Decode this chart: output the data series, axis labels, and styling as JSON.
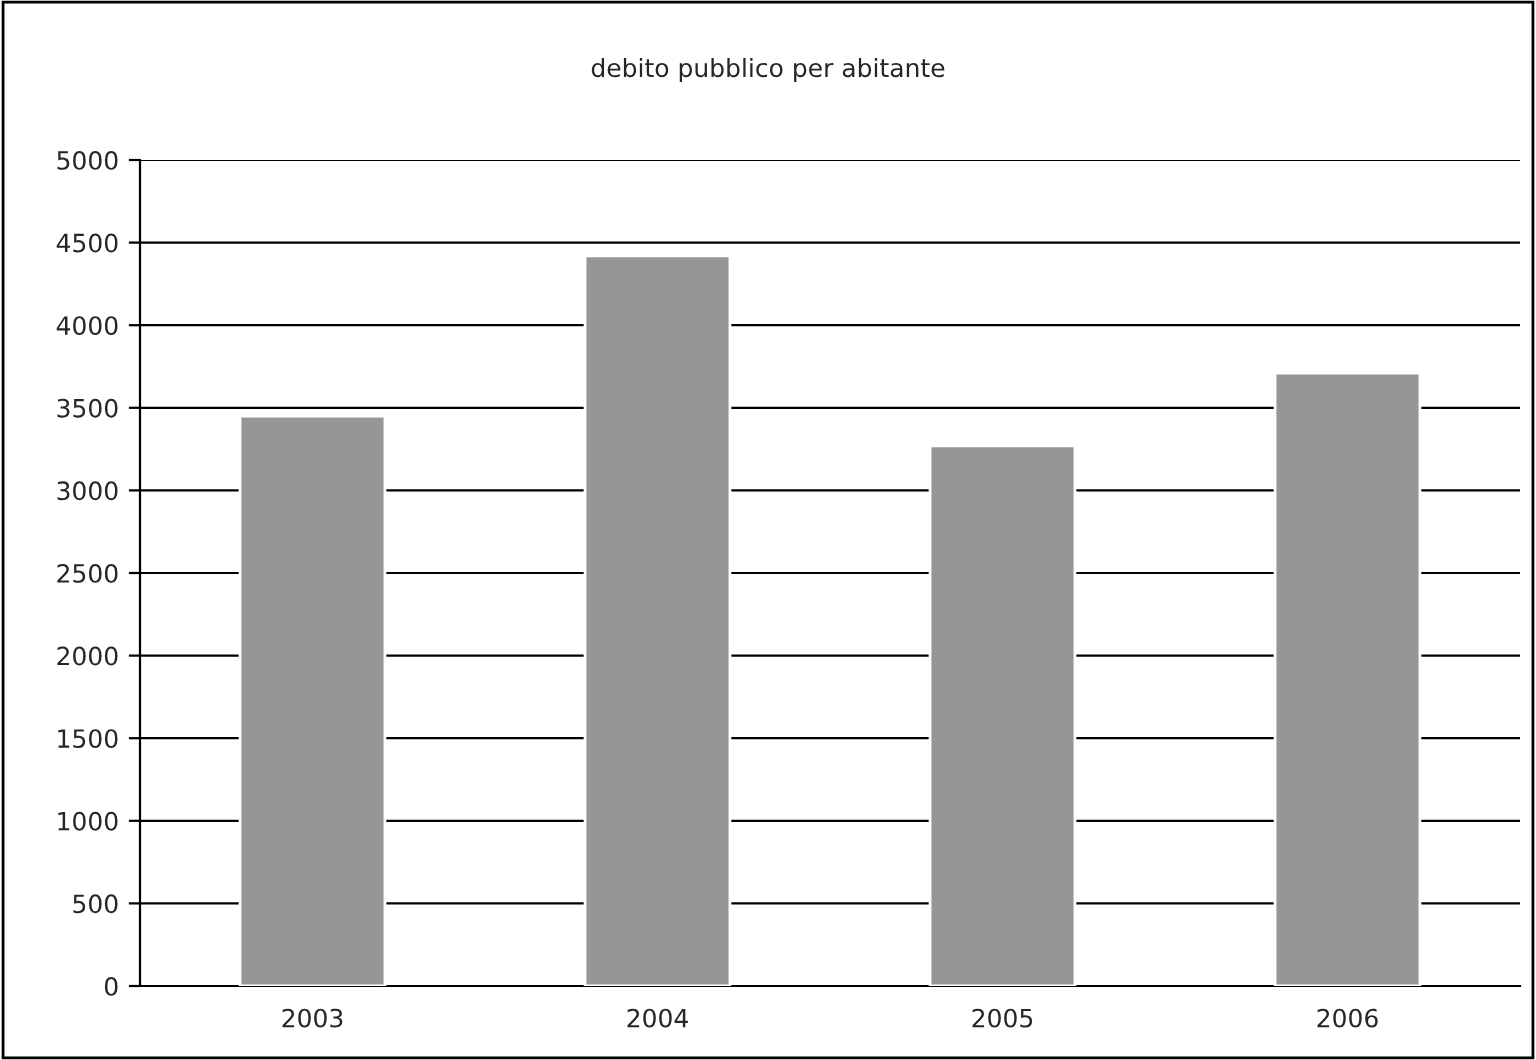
{
  "chart_data": {
    "type": "bar",
    "title": "debito pubblico per abitante",
    "categories": [
      "2003",
      "2004",
      "2005",
      "2006"
    ],
    "values": [
      3450,
      4420,
      3270,
      3710
    ],
    "color": "#969696",
    "ylim": [
      0,
      5000
    ],
    "yticks": [
      0,
      500,
      1000,
      1500,
      2000,
      2500,
      3000,
      3500,
      4000,
      4500,
      5000
    ],
    "grid": "y"
  }
}
